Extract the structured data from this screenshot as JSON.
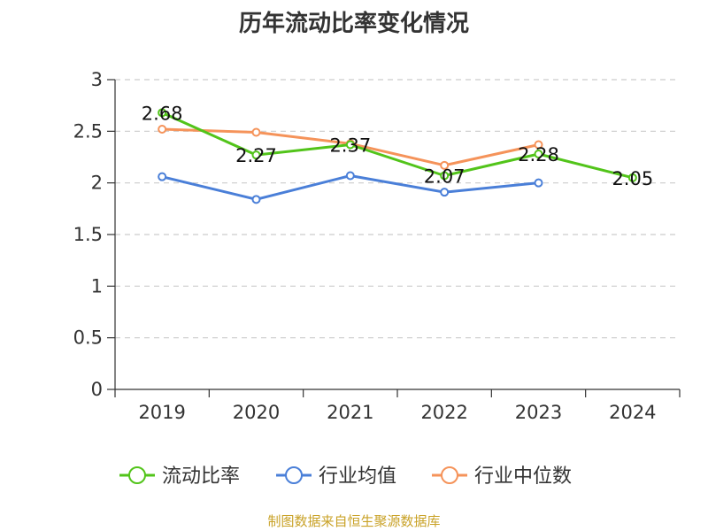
{
  "title": "历年流动比率变化情况",
  "source": "制图数据来自恒生聚源数据库",
  "chart_data": {
    "type": "line",
    "categories": [
      "2019",
      "2020",
      "2021",
      "2022",
      "2023",
      "2024"
    ],
    "ylim": [
      0,
      3
    ],
    "yticks": [
      "0",
      "0.5",
      "1",
      "1.5",
      "2",
      "2.5",
      "3"
    ],
    "grid": true,
    "legend_placement": "bottom-center",
    "series": [
      {
        "name": "流动比率",
        "color": "#52c41a",
        "values": [
          2.68,
          2.27,
          2.37,
          2.07,
          2.28,
          2.05
        ],
        "labels": [
          "2.68",
          "2.27",
          "2.37",
          "2.07",
          "2.28",
          "2.05"
        ]
      },
      {
        "name": "行业均值",
        "color": "#4a7fd8",
        "values": [
          2.06,
          1.84,
          2.07,
          1.91,
          2.0,
          null
        ]
      },
      {
        "name": "行业中位数",
        "color": "#f5935a",
        "values": [
          2.52,
          2.49,
          2.38,
          2.17,
          2.37,
          null
        ]
      }
    ]
  }
}
